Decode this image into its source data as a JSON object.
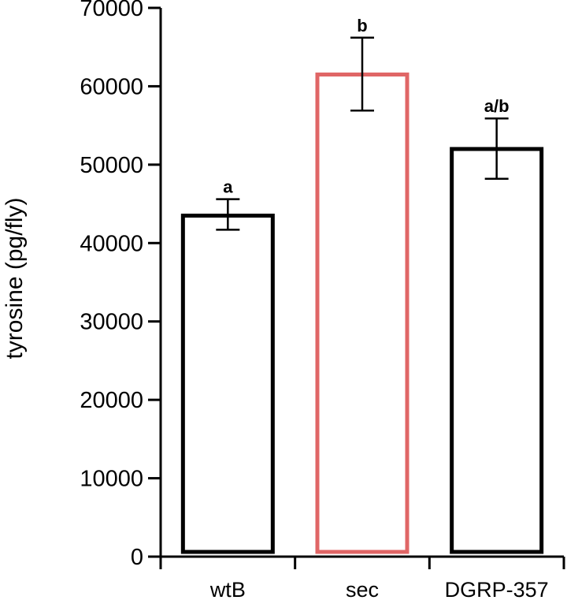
{
  "chart_data": {
    "type": "bar",
    "title": "",
    "xlabel": "",
    "ylabel": "tyrosine (pg/fly)",
    "ylim": [
      0,
      70000
    ],
    "yticks": [
      0,
      10000,
      20000,
      30000,
      40000,
      50000,
      60000,
      70000
    ],
    "categories": [
      "wtB",
      "sec",
      "DGRP-357"
    ],
    "values": [
      43500,
      61500,
      52000
    ],
    "error_low": [
      41700,
      56900,
      48200
    ],
    "error_high": [
      45600,
      66200,
      55900
    ],
    "significance": [
      "a",
      "b",
      "a/b"
    ],
    "bar_colors": [
      "#000000",
      "#e06666",
      "#000000"
    ],
    "bar_fill": "#ffffff",
    "grid": false,
    "legend": "none"
  }
}
